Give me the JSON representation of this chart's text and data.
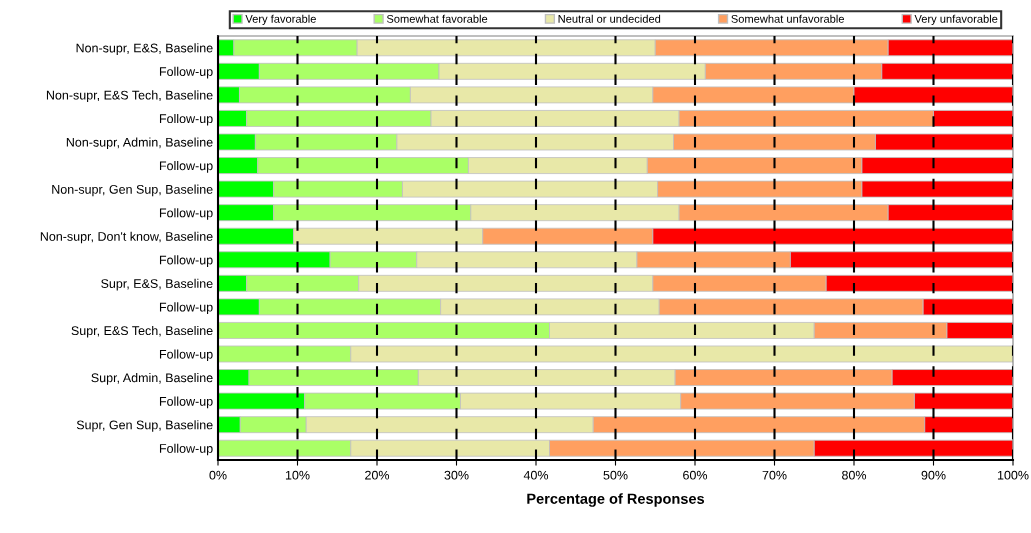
{
  "chart_data": {
    "type": "bar",
    "orientation": "horizontal",
    "stacked": true,
    "xlabel": "Percentage of Responses",
    "categories": [
      "Non-supr, E&S, Baseline",
      "Follow-up",
      "Non-supr, E&S Tech, Baseline",
      "Follow-up",
      "Non-supr, Admin, Baseline",
      "Follow-up",
      "Non-supr, Gen Sup, Baseline",
      "Follow-up",
      "Non-supr, Don't know, Baseline",
      "Follow-up",
      "Supr, E&S, Baseline",
      "Follow-up",
      "Supr, E&S Tech, Baseline",
      "Follow-up",
      "Supr, Admin, Baseline",
      "Follow-up",
      "Supr, Gen Sup, Baseline",
      "Follow-up"
    ],
    "series": [
      {
        "name": "Very favorable",
        "color": "#00ff00",
        "values": [
          2,
          5.2,
          2.7,
          3.6,
          4.7,
          5,
          7,
          7,
          9.5,
          14.1,
          3.6,
          5.2,
          0,
          0,
          3.9,
          10.9,
          2.8,
          0
        ]
      },
      {
        "name": "Somewhat favorable",
        "color": "#aaff66",
        "values": [
          15.5,
          22.6,
          21.5,
          23.2,
          17.8,
          26.5,
          16.2,
          24.8,
          0,
          10.9,
          14.1,
          22.8,
          41.7,
          16.7,
          21.3,
          19.6,
          8.3,
          16.7
        ]
      },
      {
        "name": "Neutral or undecided",
        "color": "#e8e8a8",
        "values": [
          37.5,
          33.5,
          30.5,
          31.2,
          34.8,
          22.5,
          32.1,
          26.2,
          23.8,
          27.7,
          37,
          27.5,
          33.3,
          83.3,
          32.3,
          27.7,
          36.1,
          25
        ]
      },
      {
        "name": "Somewhat unfavorable",
        "color": "#ff9f60",
        "values": [
          29.3,
          22.2,
          25.3,
          32,
          25.4,
          27,
          25.7,
          26.3,
          21.4,
          19.3,
          21.8,
          33.2,
          16.7,
          0,
          27.3,
          29.4,
          41.7,
          33.3
        ]
      },
      {
        "name": "Very unfavorable",
        "color": "#ff0000",
        "values": [
          15.7,
          16.5,
          20,
          10,
          17.3,
          19,
          19,
          15.7,
          45.3,
          28,
          23.5,
          11.3,
          8.3,
          0,
          15.2,
          12.4,
          11.1,
          25
        ]
      }
    ],
    "xlim": [
      0,
      100
    ],
    "xticks": [
      {
        "value": 0,
        "label": "0%"
      },
      {
        "value": 10,
        "label": "10%"
      },
      {
        "value": 20,
        "label": "20%"
      },
      {
        "value": 30,
        "label": "30%"
      },
      {
        "value": 40,
        "label": "40%"
      },
      {
        "value": 50,
        "label": "50%"
      },
      {
        "value": 60,
        "label": "60%"
      },
      {
        "value": 70,
        "label": "70%"
      },
      {
        "value": 80,
        "label": "80%"
      },
      {
        "value": 90,
        "label": "90%"
      },
      {
        "value": 100,
        "label": "100%"
      }
    ],
    "grid": "x",
    "legend": "top"
  }
}
